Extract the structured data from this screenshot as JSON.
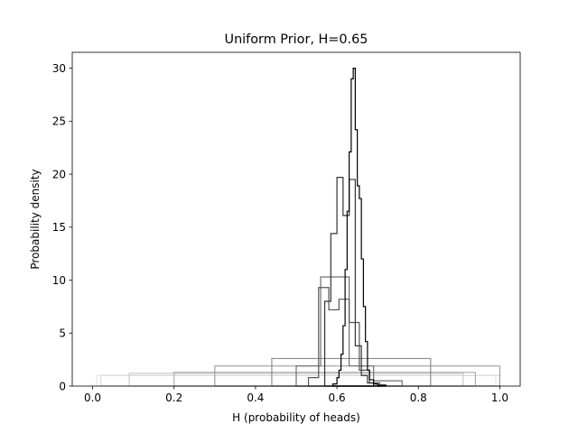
{
  "chart_data": {
    "type": "histogram-step",
    "title": "Uniform Prior, H=0.65",
    "xlabel": "H (probability of heads)",
    "ylabel": "Probability density",
    "xlim": [
      -0.05,
      1.05
    ],
    "ylim": [
      0,
      31.5
    ],
    "xticks": [
      "0.0",
      "0.2",
      "0.4",
      "0.6",
      "0.8",
      "1.0"
    ],
    "xtick_values": [
      0.0,
      0.2,
      0.4,
      0.6,
      0.8,
      1.0
    ],
    "yticks": [
      "0",
      "5",
      "10",
      "15",
      "20",
      "25",
      "30"
    ],
    "ytick_values": [
      0,
      5,
      10,
      15,
      20,
      25,
      30
    ],
    "grid": false,
    "legend": "none",
    "series": [
      {
        "color": "#e6e6e6",
        "edges": [
          0.01,
          0.5,
          0.99
        ],
        "densities": [
          1.0,
          1.0
        ]
      },
      {
        "color": "#d9d9d9",
        "edges": [
          0.02,
          0.51,
          1.0
        ],
        "densities": [
          1.0,
          1.0
        ]
      },
      {
        "color": "#c8c8c8",
        "edges": [
          0.09,
          0.5,
          0.91
        ],
        "densities": [
          1.2,
          1.2
        ]
      },
      {
        "color": "#b0b0b0",
        "edges": [
          0.2,
          0.58,
          0.94
        ],
        "densities": [
          1.3,
          1.3
        ]
      },
      {
        "color": "#a0a0a0",
        "edges": [
          0.3,
          0.65,
          1.0
        ],
        "densities": [
          1.9,
          1.9
        ]
      },
      {
        "color": "#8c8c8c",
        "edges": [
          0.44,
          0.64,
          0.83
        ],
        "densities": [
          2.6,
          2.6
        ]
      },
      {
        "color": "#707070",
        "edges": [
          0.5,
          0.56,
          0.63,
          0.69,
          0.76
        ],
        "densities": [
          1.9,
          10.3,
          1.9,
          0.5
        ]
      },
      {
        "color": "#555555",
        "edges": [
          0.53,
          0.555,
          0.58,
          0.605,
          0.63,
          0.655,
          0.68,
          0.705
        ],
        "densities": [
          0.8,
          9.3,
          7.2,
          8.2,
          6.0,
          1.5,
          0.3
        ]
      },
      {
        "color": "#333333",
        "edges": [
          0.57,
          0.585,
          0.6,
          0.615,
          0.63,
          0.645,
          0.66,
          0.675,
          0.69
        ],
        "densities": [
          8.0,
          14.4,
          19.7,
          16.1,
          19.5,
          3.8,
          1.0,
          0.3
        ]
      },
      {
        "color": "#000000",
        "edges": [
          0.59,
          0.6,
          0.605,
          0.61,
          0.615,
          0.62,
          0.625,
          0.63,
          0.635,
          0.64,
          0.645,
          0.65,
          0.655,
          0.66,
          0.665,
          0.67,
          0.675,
          0.68,
          0.69,
          0.7,
          0.72
        ],
        "densities": [
          0.2,
          0.8,
          1.5,
          3.0,
          5.7,
          11.0,
          16.5,
          22.1,
          29.0,
          30.0,
          24.2,
          18.9,
          17.7,
          12.0,
          7.5,
          4.2,
          1.5,
          0.6,
          0.2,
          0.1
        ]
      }
    ]
  }
}
